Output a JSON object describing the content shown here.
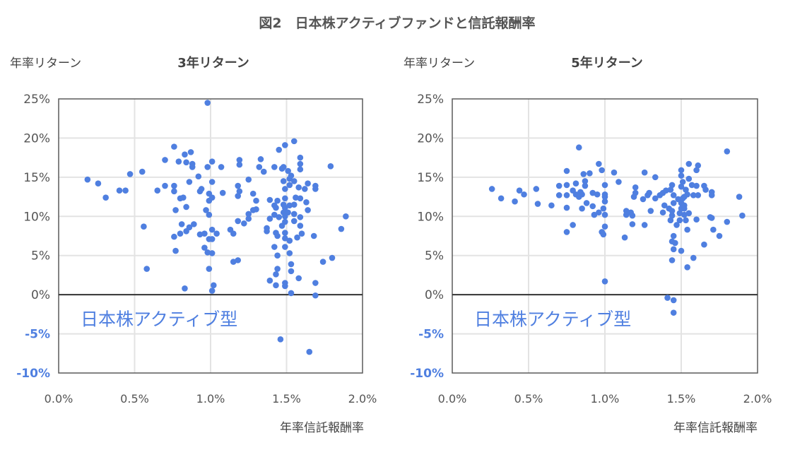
{
  "title": "図2　日本株アクティブファンドと信託報酬率",
  "colors": {
    "point": "#4f7fe0",
    "negative_label": "#4f7fe0",
    "annotation": "#4f7fe0",
    "grid": "#e3e3e3",
    "frame": "#5a5a5a"
  },
  "chart_data": [
    {
      "type": "scatter",
      "title": "3年リターン",
      "ylabel": "年率リターン",
      "xlabel": "年率信託報酬率",
      "annotation": "日本株アクティブ型",
      "xlim": [
        0,
        2.0
      ],
      "ylim": [
        -10,
        25
      ],
      "grid": true,
      "x_ticks": [
        "0.0%",
        "0.5%",
        "1.0%",
        "1.5%",
        "2.0%"
      ],
      "y_ticks": [
        "25%",
        "20%",
        "15%",
        "10%",
        "5%",
        "0%",
        "-5%",
        "-10%"
      ],
      "x_tick_values": [
        0,
        0.5,
        1.0,
        1.5,
        2.0
      ],
      "y_tick_values": [
        25,
        20,
        15,
        10,
        5,
        0,
        -5,
        -10
      ],
      "points": [
        [
          0.98,
          24.5
        ],
        [
          0.76,
          18.9
        ],
        [
          0.83,
          17.9
        ],
        [
          0.87,
          18.2
        ],
        [
          0.7,
          17.2
        ],
        [
          0.79,
          17.0
        ],
        [
          0.84,
          16.9
        ],
        [
          0.88,
          16.7
        ],
        [
          0.88,
          16.3
        ],
        [
          0.98,
          16.3
        ],
        [
          1.01,
          17.0
        ],
        [
          0.47,
          15.4
        ],
        [
          0.55,
          15.7
        ],
        [
          0.92,
          15.1
        ],
        [
          0.19,
          14.7
        ],
        [
          0.26,
          14.2
        ],
        [
          0.31,
          12.4
        ],
        [
          0.4,
          13.3
        ],
        [
          0.44,
          13.3
        ],
        [
          0.65,
          13.3
        ],
        [
          0.7,
          13.9
        ],
        [
          0.76,
          13.9
        ],
        [
          0.76,
          13.2
        ],
        [
          0.86,
          14.4
        ],
        [
          0.94,
          13.5
        ],
        [
          0.93,
          13.2
        ],
        [
          0.99,
          12.9
        ],
        [
          1.01,
          14.4
        ],
        [
          0.8,
          12.3
        ],
        [
          0.82,
          12.4
        ],
        [
          0.99,
          12.0
        ],
        [
          1.01,
          12.4
        ],
        [
          0.84,
          11.2
        ],
        [
          0.77,
          10.8
        ],
        [
          0.97,
          10.8
        ],
        [
          0.99,
          10.2
        ],
        [
          0.56,
          8.7
        ],
        [
          0.81,
          9.0
        ],
        [
          0.86,
          8.6
        ],
        [
          0.89,
          9.0
        ],
        [
          0.84,
          8.1
        ],
        [
          0.8,
          7.8
        ],
        [
          0.76,
          7.4
        ],
        [
          0.93,
          7.7
        ],
        [
          0.96,
          7.8
        ],
        [
          0.99,
          7.1
        ],
        [
          1.01,
          7.1
        ],
        [
          1.01,
          8.3
        ],
        [
          0.96,
          6.0
        ],
        [
          0.98,
          5.4
        ],
        [
          1.01,
          5.3
        ],
        [
          0.77,
          5.6
        ],
        [
          0.58,
          3.3
        ],
        [
          0.99,
          3.3
        ],
        [
          0.83,
          0.8
        ],
        [
          1.01,
          0.5
        ],
        [
          1.55,
          19.6
        ],
        [
          1.49,
          19.1
        ],
        [
          1.45,
          18.5
        ],
        [
          1.59,
          17.5
        ],
        [
          1.59,
          16.7
        ],
        [
          1.59,
          16.0
        ],
        [
          1.79,
          16.4
        ],
        [
          1.07,
          16.3
        ],
        [
          1.19,
          17.2
        ],
        [
          1.19,
          16.6
        ],
        [
          1.33,
          17.3
        ],
        [
          1.32,
          16.3
        ],
        [
          1.35,
          15.7
        ],
        [
          1.42,
          16.3
        ],
        [
          1.47,
          16.1
        ],
        [
          1.48,
          16.3
        ],
        [
          1.51,
          15.8
        ],
        [
          1.53,
          15.2
        ],
        [
          1.52,
          14.8
        ],
        [
          1.48,
          14.5
        ],
        [
          1.55,
          14.5
        ],
        [
          1.52,
          14.0
        ],
        [
          1.49,
          13.5
        ],
        [
          1.58,
          13.7
        ],
        [
          1.62,
          13.5
        ],
        [
          1.64,
          14.2
        ],
        [
          1.69,
          13.9
        ],
        [
          1.69,
          13.5
        ],
        [
          1.25,
          14.7
        ],
        [
          1.18,
          13.9
        ],
        [
          1.19,
          13.2
        ],
        [
          1.18,
          12.6
        ],
        [
          1.08,
          13.0
        ],
        [
          1.28,
          12.9
        ],
        [
          1.3,
          12.0
        ],
        [
          1.3,
          10.9
        ],
        [
          1.28,
          10.8
        ],
        [
          1.25,
          10.3
        ],
        [
          1.25,
          9.7
        ],
        [
          1.22,
          9.1
        ],
        [
          1.18,
          9.4
        ],
        [
          1.13,
          8.3
        ],
        [
          1.15,
          7.8
        ],
        [
          1.04,
          7.8
        ],
        [
          1.15,
          4.2
        ],
        [
          1.18,
          4.4
        ],
        [
          1.39,
          12.1
        ],
        [
          1.44,
          12.0
        ],
        [
          1.42,
          11.4
        ],
        [
          1.43,
          11.1
        ],
        [
          1.48,
          11.5
        ],
        [
          1.52,
          11.4
        ],
        [
          1.55,
          11.5
        ],
        [
          1.56,
          12.4
        ],
        [
          1.59,
          12.3
        ],
        [
          1.63,
          11.8
        ],
        [
          1.64,
          10.8
        ],
        [
          1.49,
          12.3
        ],
        [
          1.49,
          11.1
        ],
        [
          1.48,
          10.5
        ],
        [
          1.51,
          10.5
        ],
        [
          1.55,
          10.3
        ],
        [
          1.42,
          10.2
        ],
        [
          1.45,
          9.9
        ],
        [
          1.49,
          10.0
        ],
        [
          1.39,
          9.7
        ],
        [
          1.59,
          9.9
        ],
        [
          1.55,
          9.4
        ],
        [
          1.49,
          9.3
        ],
        [
          1.47,
          8.8
        ],
        [
          1.59,
          8.8
        ],
        [
          1.37,
          8.5
        ],
        [
          1.37,
          8.1
        ],
        [
          1.43,
          7.9
        ],
        [
          1.44,
          7.5
        ],
        [
          1.49,
          7.9
        ],
        [
          1.49,
          7.2
        ],
        [
          1.52,
          6.9
        ],
        [
          1.57,
          7.3
        ],
        [
          1.6,
          7.8
        ],
        [
          1.68,
          7.5
        ],
        [
          1.86,
          8.4
        ],
        [
          1.89,
          10.0
        ],
        [
          1.42,
          6.1
        ],
        [
          1.49,
          6.1
        ],
        [
          1.44,
          5.0
        ],
        [
          1.52,
          5.3
        ],
        [
          1.74,
          4.2
        ],
        [
          1.8,
          4.7
        ],
        [
          1.53,
          3.9
        ],
        [
          1.44,
          3.3
        ],
        [
          1.53,
          3.0
        ],
        [
          1.43,
          2.6
        ],
        [
          1.39,
          1.8
        ],
        [
          1.43,
          1.2
        ],
        [
          1.49,
          1.5
        ],
        [
          1.49,
          1.1
        ],
        [
          1.58,
          2.1
        ],
        [
          1.69,
          1.5
        ],
        [
          1.02,
          1.2
        ],
        [
          1.53,
          0.2
        ],
        [
          1.69,
          -0.1
        ],
        [
          1.46,
          -5.7
        ],
        [
          1.65,
          -7.3
        ]
      ]
    },
    {
      "type": "scatter",
      "title": "5年リターン",
      "ylabel": "年率リターン",
      "xlabel": "年率信託報酬率",
      "annotation": "日本株アクティブ型",
      "xlim": [
        0,
        2.0
      ],
      "ylim": [
        -10,
        25
      ],
      "grid": true,
      "x_ticks": [
        "0.0%",
        "0.5%",
        "1.0%",
        "1.5%",
        "2.0%"
      ],
      "y_ticks": [
        "25%",
        "20%",
        "15%",
        "10%",
        "5%",
        "0%",
        "-5%",
        "-10%"
      ],
      "x_tick_values": [
        0,
        0.5,
        1.0,
        1.5,
        2.0
      ],
      "y_tick_values": [
        25,
        20,
        15,
        10,
        5,
        0,
        -5,
        -10
      ],
      "points": [
        [
          0.83,
          18.8
        ],
        [
          0.96,
          16.7
        ],
        [
          0.98,
          15.9
        ],
        [
          0.75,
          15.8
        ],
        [
          0.86,
          15.4
        ],
        [
          0.9,
          15.5
        ],
        [
          0.26,
          13.5
        ],
        [
          0.32,
          12.3
        ],
        [
          0.44,
          13.3
        ],
        [
          0.47,
          12.8
        ],
        [
          0.41,
          11.9
        ],
        [
          0.55,
          13.5
        ],
        [
          0.56,
          11.6
        ],
        [
          0.65,
          11.4
        ],
        [
          0.7,
          13.9
        ],
        [
          0.7,
          12.7
        ],
        [
          0.75,
          14.0
        ],
        [
          0.75,
          12.7
        ],
        [
          0.75,
          11.1
        ],
        [
          0.81,
          14.2
        ],
        [
          0.79,
          13.3
        ],
        [
          0.81,
          12.8
        ],
        [
          0.84,
          13.1
        ],
        [
          0.83,
          12.5
        ],
        [
          0.85,
          12.8
        ],
        [
          0.87,
          14.5
        ],
        [
          0.87,
          13.9
        ],
        [
          0.92,
          13.0
        ],
        [
          0.95,
          12.8
        ],
        [
          1.0,
          14.0
        ],
        [
          1.0,
          12.8
        ],
        [
          1.0,
          11.9
        ],
        [
          0.88,
          11.7
        ],
        [
          0.85,
          11.0
        ],
        [
          0.92,
          11.3
        ],
        [
          0.93,
          10.2
        ],
        [
          0.96,
          10.5
        ],
        [
          0.99,
          11.0
        ],
        [
          1.0,
          10.2
        ],
        [
          0.79,
          8.9
        ],
        [
          0.75,
          8.0
        ],
        [
          1.0,
          8.7
        ],
        [
          0.98,
          8.0
        ],
        [
          0.99,
          7.7
        ],
        [
          1.0,
          1.7
        ],
        [
          1.8,
          18.3
        ],
        [
          1.55,
          16.7
        ],
        [
          1.61,
          16.5
        ],
        [
          1.6,
          15.9
        ],
        [
          1.5,
          15.9
        ],
        [
          1.5,
          15.2
        ],
        [
          1.55,
          14.8
        ],
        [
          1.51,
          14.4
        ],
        [
          1.5,
          13.8
        ],
        [
          1.57,
          14.0
        ],
        [
          1.6,
          13.9
        ],
        [
          1.65,
          13.9
        ],
        [
          1.66,
          13.4
        ],
        [
          1.7,
          13.1
        ],
        [
          1.7,
          12.7
        ],
        [
          1.88,
          12.5
        ],
        [
          1.9,
          10.1
        ],
        [
          1.8,
          9.3
        ],
        [
          1.69,
          9.9
        ],
        [
          1.7,
          9.8
        ],
        [
          1.71,
          8.3
        ],
        [
          1.75,
          7.5
        ],
        [
          1.65,
          6.4
        ],
        [
          1.58,
          4.7
        ],
        [
          1.54,
          3.5
        ],
        [
          1.6,
          9.6
        ],
        [
          1.54,
          8.3
        ],
        [
          1.55,
          10.4
        ],
        [
          1.45,
          7.5
        ],
        [
          1.44,
          6.8
        ],
        [
          1.46,
          6.6
        ],
        [
          1.45,
          5.8
        ],
        [
          1.5,
          5.6
        ],
        [
          1.44,
          4.4
        ],
        [
          1.41,
          -0.4
        ],
        [
          1.45,
          -0.7
        ],
        [
          1.45,
          -2.3
        ],
        [
          1.06,
          15.6
        ],
        [
          1.09,
          14.4
        ],
        [
          1.26,
          15.6
        ],
        [
          1.33,
          15.0
        ],
        [
          1.2,
          13.7
        ],
        [
          1.2,
          13.0
        ],
        [
          1.19,
          12.5
        ],
        [
          1.25,
          12.2
        ],
        [
          1.28,
          12.7
        ],
        [
          1.29,
          13.0
        ],
        [
          1.33,
          12.3
        ],
        [
          1.36,
          12.7
        ],
        [
          1.38,
          13.0
        ],
        [
          1.4,
          13.3
        ],
        [
          1.43,
          13.4
        ],
        [
          1.44,
          14.0
        ],
        [
          1.45,
          12.7
        ],
        [
          1.48,
          12.2
        ],
        [
          1.51,
          12.3
        ],
        [
          1.52,
          12.5
        ],
        [
          1.54,
          12.8
        ],
        [
          1.53,
          13.4
        ],
        [
          1.58,
          12.7
        ],
        [
          1.61,
          12.7
        ],
        [
          1.45,
          11.7
        ],
        [
          1.39,
          11.4
        ],
        [
          1.5,
          11.7
        ],
        [
          1.52,
          11.4
        ],
        [
          1.5,
          11.0
        ],
        [
          1.52,
          11.0
        ],
        [
          1.42,
          11.0
        ],
        [
          1.44,
          10.7
        ],
        [
          1.38,
          10.5
        ],
        [
          1.49,
          10.4
        ],
        [
          1.52,
          10.2
        ],
        [
          1.44,
          10.1
        ],
        [
          1.43,
          9.5
        ],
        [
          1.49,
          9.5
        ],
        [
          1.53,
          9.5
        ],
        [
          1.47,
          8.9
        ],
        [
          1.3,
          10.7
        ],
        [
          1.14,
          10.7
        ],
        [
          1.17,
          10.5
        ],
        [
          1.14,
          10.2
        ],
        [
          1.18,
          10.1
        ],
        [
          1.18,
          9.0
        ],
        [
          1.26,
          8.9
        ],
        [
          1.13,
          7.3
        ],
        [
          1.0,
          12.5
        ]
      ]
    }
  ]
}
